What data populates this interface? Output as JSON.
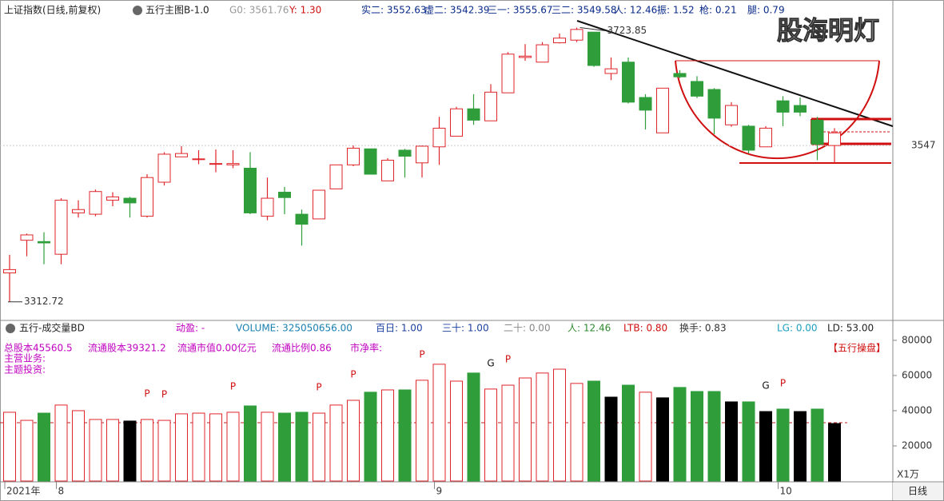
{
  "watermark": "股海明灯",
  "period": "日线",
  "chart_data": [
    {
      "type": "candlestick",
      "title": "上证指数(日线,前复权)",
      "indicator": "五行主图B-1.0",
      "readouts": [
        {
          "text": "G0: 3561.76",
          "color": "#999999"
        },
        {
          "text": "Y: 1.30",
          "color": "#d01010"
        },
        {
          "text": "实二: 3552.63",
          "color": "#0a2a8a"
        },
        {
          "text": "虚二: 3542.39",
          "color": "#0a2a8a"
        },
        {
          "text": "三一: 3555.67",
          "color": "#0a2a8a"
        },
        {
          "text": "三二: 3549.58",
          "color": "#0a2a8a"
        },
        {
          "text": "人: 12.46",
          "color": "#0a2a8a"
        },
        {
          "text": "振: 1.52",
          "color": "#0a2a8a"
        },
        {
          "text": "枪: 0.21",
          "color": "#0a2a8a"
        },
        {
          "text": "腿: 0.79",
          "color": "#0a2a8a"
        }
      ],
      "categories": [
        "2021年",
        null,
        null,
        "8",
        null,
        null,
        null,
        null,
        null,
        null,
        null,
        null,
        null,
        null,
        null,
        null,
        null,
        null,
        null,
        null,
        null,
        null,
        null,
        null,
        null,
        "9",
        null,
        null,
        null,
        null,
        null,
        null,
        null,
        null,
        null,
        null,
        null,
        null,
        null,
        null,
        null,
        null,
        null,
        null,
        null,
        "10",
        null,
        null,
        null
      ],
      "open": [
        3356,
        3405,
        3403,
        3384,
        3446,
        3444,
        3465,
        3468,
        3441,
        3492,
        3530,
        3526,
        3519,
        3518,
        3513,
        3441,
        3477,
        3444,
        3437,
        3482,
        3518,
        3542,
        3494,
        3540,
        3521,
        3545,
        3561,
        3602,
        3584,
        3626,
        3679,
        3672,
        3701,
        3705,
        3717,
        3655,
        3672,
        3619,
        3566,
        3655,
        3643,
        3631,
        3578,
        3576,
        3545,
        3614,
        3607,
        3585,
        3547
      ],
      "high": [
        3383,
        3415,
        3417,
        3468,
        3465,
        3481,
        3477,
        3470,
        3504,
        3537,
        3546,
        3540,
        3541,
        3540,
        3537,
        3499,
        3485,
        3451,
        3480,
        3518,
        3547,
        3542,
        3528,
        3542,
        3547,
        3590,
        3605,
        3624,
        3639,
        3687,
        3699,
        3702,
        3715,
        3723.85,
        3717,
        3679,
        3679,
        3624,
        3633,
        3660,
        3651,
        3633,
        3612,
        3578,
        3576,
        3621,
        3619,
        3590,
        3573
      ],
      "low": [
        3312.72,
        3381,
        3369,
        3369,
        3439,
        3441,
        3456,
        3439,
        3439,
        3487,
        3530,
        3519,
        3507,
        3513,
        3444,
        3435,
        3444,
        3397,
        3437,
        3482,
        3516,
        3504,
        3494,
        3499,
        3499,
        3518,
        3561,
        3578,
        3584,
        3626,
        3674,
        3672,
        3700,
        3702,
        3665,
        3645,
        3610,
        3571,
        3566,
        3648,
        3618,
        3564,
        3575,
        3535,
        3545,
        3576,
        3591,
        3525,
        3521
      ],
      "close": [
        3361,
        3413,
        3401,
        3465,
        3451,
        3478,
        3470,
        3461,
        3499,
        3534,
        3535,
        3527,
        3520,
        3520,
        3446,
        3468,
        3469,
        3429,
        3480,
        3518,
        3543,
        3504,
        3525,
        3531,
        3546,
        3573,
        3602,
        3585,
        3627,
        3684,
        3681,
        3698,
        3708,
        3721,
        3667,
        3662,
        3612,
        3600,
        3633,
        3650,
        3621,
        3588,
        3607,
        3540,
        3573,
        3597,
        3597,
        3549,
        3566
      ],
      "up_color": "#e0262b",
      "down_color": "#2f9e3a",
      "ylim": [
        3286,
        3734
      ],
      "yticks": [
        3547
      ],
      "grid": true
    },
    {
      "type": "bar",
      "title": "五行-成交量BD",
      "readouts": [
        {
          "text": "动盈: -",
          "color": "#c000c0"
        },
        {
          "text": "VOLUME: 325050656.00",
          "color": "#1a7fb0"
        },
        {
          "text": "百日: 1.00",
          "color": "#1a3fa0"
        },
        {
          "text": "三十: 1.00",
          "color": "#1a3fa0"
        },
        {
          "text": "二十: 0.00",
          "color": "#888888"
        },
        {
          "text": "人: 12.46",
          "color": "#2f8a2f"
        },
        {
          "text": "LTB: 0.80",
          "color": "#d01010"
        },
        {
          "text": "换手: 0.83",
          "color": "#333333"
        },
        {
          "text": "LG: 0.00",
          "color": "#1a9fc0"
        },
        {
          "text": "LD: 53.00",
          "color": "#222222"
        }
      ],
      "info": [
        "总股本45560.5",
        "流通股本39321.2",
        "流通市值0.00亿元",
        "流通比例0.86",
        "市净率:"
      ],
      "info2": [
        "主营业务:",
        "主题投资:"
      ],
      "tag": "【五行操盘】",
      "unit": "X1万",
      "values": [
        39100,
        34500,
        38600,
        43200,
        40000,
        35000,
        35000,
        34100,
        35000,
        34500,
        38200,
        38600,
        38200,
        39100,
        42700,
        39100,
        38600,
        39100,
        38600,
        43200,
        45900,
        50500,
        51800,
        51800,
        57300,
        66400,
        56800,
        61400,
        52300,
        54500,
        58600,
        61400,
        63600,
        55500,
        56800,
        47700,
        54500,
        50500,
        47300,
        53200,
        50900,
        50900,
        45000,
        45000,
        39500,
        40900,
        39500,
        40900,
        32700
      ],
      "colors": [
        "#e0262b",
        "#e0262b",
        "#2f9e3a",
        "#e0262b",
        "#e0262b",
        "#e0262b",
        "#e0262b",
        "#000000",
        "#e0262b",
        "#e0262b",
        "#e0262b",
        "#e0262b",
        "#e0262b",
        "#e0262b",
        "#2f9e3a",
        "#e0262b",
        "#2f9e3a",
        "#2f9e3a",
        "#e0262b",
        "#e0262b",
        "#e0262b",
        "#2f9e3a",
        "#e0262b",
        "#2f9e3a",
        "#e0262b",
        "#e0262b",
        "#e0262b",
        "#2f9e3a",
        "#e0262b",
        "#e0262b",
        "#e0262b",
        "#e0262b",
        "#e0262b",
        "#e0262b",
        "#2f9e3a",
        "#000000",
        "#2f9e3a",
        "#e0262b",
        "#000000",
        "#2f9e3a",
        "#2f9e3a",
        "#2f9e3a",
        "#000000",
        "#2f9e3a",
        "#000000",
        "#2f9e3a",
        "#000000",
        "#2f9e3a",
        "#000000"
      ],
      "signals": [
        null,
        null,
        null,
        null,
        null,
        null,
        null,
        null,
        "P",
        "P",
        null,
        null,
        null,
        "P",
        null,
        null,
        null,
        null,
        "P",
        null,
        "P",
        null,
        null,
        null,
        "P",
        null,
        null,
        null,
        "G",
        "P",
        null,
        null,
        null,
        null,
        null,
        null,
        null,
        null,
        null,
        null,
        null,
        null,
        null,
        null,
        "G",
        "P",
        null,
        null,
        null
      ],
      "ylim": [
        0,
        89500
      ],
      "yticks": [
        20000,
        40000,
        60000,
        80000
      ]
    }
  ]
}
